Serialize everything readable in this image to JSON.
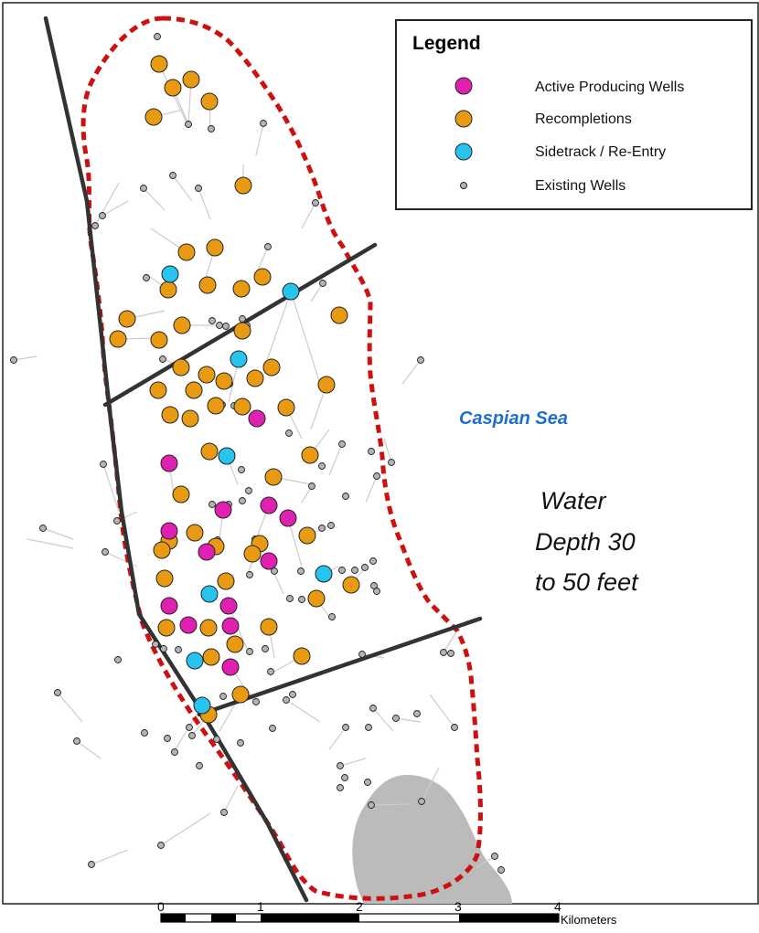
{
  "legend": {
    "title": "Legend",
    "items": [
      {
        "label": "Active Producing Wells",
        "color": "#e020b0",
        "symbol": "large-circle"
      },
      {
        "label": "Recompletions",
        "color": "#e89a12",
        "symbol": "large-circle"
      },
      {
        "label": "Sidetrack / Re-Entry",
        "color": "#26c4ee",
        "symbol": "large-circle"
      },
      {
        "label": "Existing Wells",
        "color": "#b4b4b4",
        "symbol": "small-circle"
      }
    ]
  },
  "labels": {
    "sea": "Caspian Sea",
    "water_depth_line1": "Water",
    "water_depth_line2": "Depth 30",
    "water_depth_line3": "to 50 feet"
  },
  "scale_bar": {
    "ticks": [
      "0",
      "1",
      "2",
      "3",
      "4"
    ],
    "unit": "Kilometers"
  },
  "colors": {
    "boundary": "#cc1111",
    "fault": "#333333",
    "shoal": "#bbbbbb",
    "stroke": "#222222"
  }
}
